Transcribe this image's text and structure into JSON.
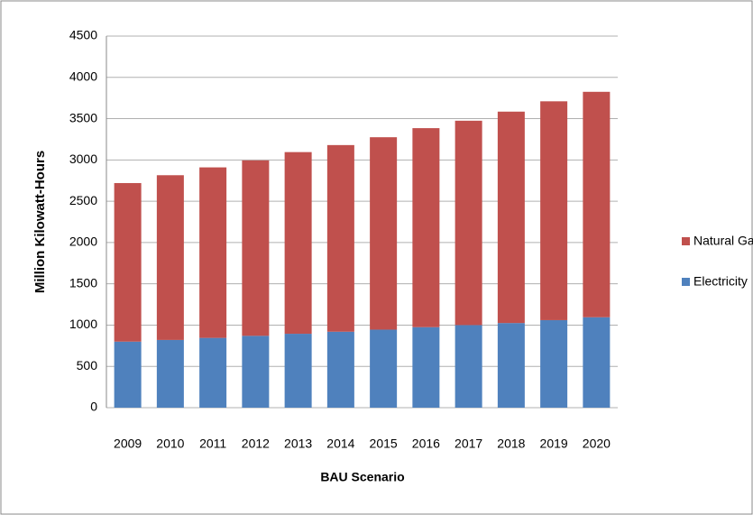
{
  "chart_data": {
    "type": "stacked_bar",
    "x_label": "BAU Scenario",
    "y_label": "Million Kilowatt-Hours",
    "categories": [
      "2009",
      "2010",
      "2011",
      "2012",
      "2013",
      "2014",
      "2015",
      "2016",
      "2017",
      "2018",
      "2019",
      "2020"
    ],
    "series": [
      {
        "name": "Electricity",
        "color": "#4f81bd",
        "values": [
          800,
          820,
          845,
          870,
          895,
          920,
          945,
          975,
          1000,
          1025,
          1060,
          1095
        ]
      },
      {
        "name": "Natural Gas",
        "color": "#c0504d",
        "values": [
          1920,
          1995,
          2065,
          2125,
          2200,
          2260,
          2330,
          2410,
          2475,
          2560,
          2650,
          2730
        ]
      }
    ],
    "ylim": [
      0,
      4500
    ],
    "yticks": [
      0,
      500,
      1000,
      1500,
      2000,
      2500,
      3000,
      3500,
      4000,
      4500
    ],
    "grid": true,
    "legend": "right"
  }
}
